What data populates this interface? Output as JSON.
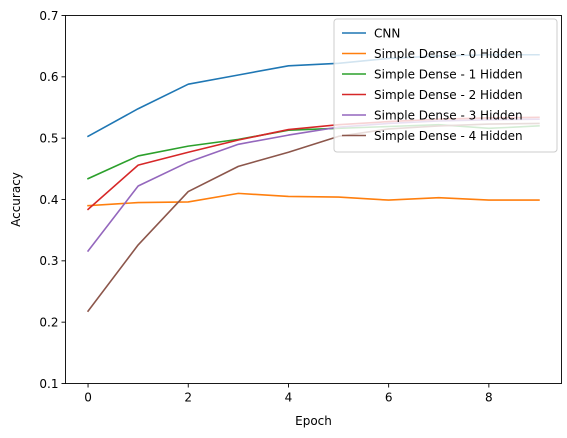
{
  "chart_data": {
    "type": "line",
    "title": "",
    "xlabel": "Epoch",
    "ylabel": "Accuracy",
    "xlim": [
      -0.45,
      9.45
    ],
    "ylim": [
      0.1,
      0.7
    ],
    "xticks": [
      0,
      2,
      4,
      6,
      8
    ],
    "yticks": [
      0.1,
      0.2,
      0.3,
      0.4,
      0.5,
      0.6,
      0.7
    ],
    "xtick_labels": [
      "0",
      "2",
      "4",
      "6",
      "8"
    ],
    "ytick_labels": [
      "0.1",
      "0.2",
      "0.3",
      "0.4",
      "0.5",
      "0.6",
      "0.7"
    ],
    "grid": false,
    "legend_position": "top-right",
    "x": [
      0,
      1,
      2,
      3,
      4,
      5,
      6,
      7,
      8,
      9
    ],
    "series": [
      {
        "name": "CNN",
        "color": "#1f77b4",
        "values": [
          0.503,
          0.548,
          0.588,
          0.603,
          0.618,
          0.622,
          0.63,
          0.634,
          0.636,
          0.636
        ]
      },
      {
        "name": "Simple Dense - 0 Hidden",
        "color": "#ff7f0e",
        "values": [
          0.39,
          0.395,
          0.396,
          0.41,
          0.405,
          0.404,
          0.399,
          0.403,
          0.399,
          0.399
        ]
      },
      {
        "name": "Simple Dense - 1 Hidden",
        "color": "#2ca02c",
        "values": [
          0.434,
          0.471,
          0.487,
          0.498,
          0.513,
          0.516,
          0.519,
          0.522,
          0.516,
          0.52
        ]
      },
      {
        "name": "Simple Dense - 2 Hidden",
        "color": "#d62728",
        "values": [
          0.384,
          0.456,
          0.477,
          0.497,
          0.514,
          0.522,
          0.527,
          0.531,
          0.533,
          0.534
        ]
      },
      {
        "name": "Simple Dense - 3 Hidden",
        "color": "#9467bd",
        "values": [
          0.316,
          0.422,
          0.461,
          0.49,
          0.505,
          0.518,
          0.524,
          0.528,
          0.53,
          0.531
        ]
      },
      {
        "name": "Simple Dense - 4 Hidden",
        "color": "#8c564b",
        "values": [
          0.218,
          0.326,
          0.413,
          0.454,
          0.477,
          0.503,
          0.515,
          0.52,
          0.523,
          0.524
        ]
      }
    ]
  }
}
